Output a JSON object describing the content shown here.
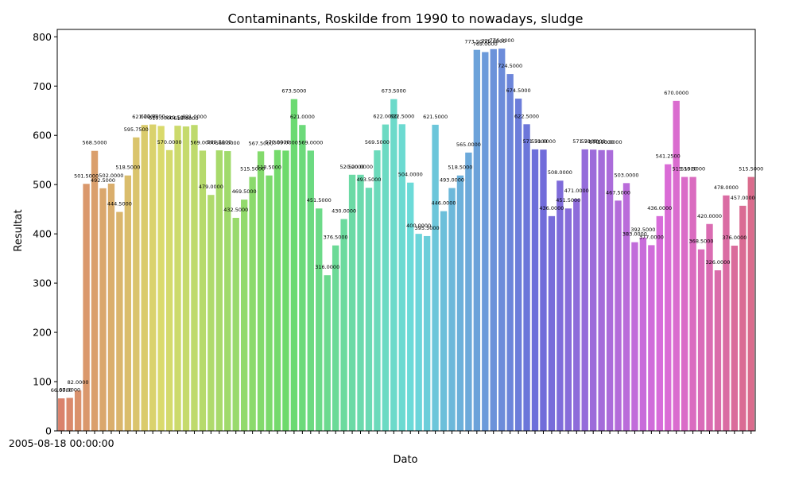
{
  "chart_data": {
    "type": "bar",
    "title": "Contaminants, Roskilde from 1990 to nowadays, sludge",
    "xlabel": "Dato",
    "ylabel": "Resultat",
    "ylim": [
      0,
      815
    ],
    "yticks": [
      0,
      100,
      200,
      300,
      400,
      500,
      600,
      700,
      800
    ],
    "grid": false,
    "legend": "none",
    "x_tick_text": "2005-08-18 00:00:00",
    "values": [
      66.0,
      67.0,
      82.0,
      501.5,
      568.5,
      492.5,
      502.0,
      444.5,
      518.5,
      595.75,
      621.0,
      622.0,
      619.0,
      570.0,
      619.5,
      618.0,
      621.0,
      569.0,
      479.0,
      569.5,
      568.0,
      432.5,
      469.5,
      515.5,
      567.5,
      518.5,
      570.0,
      569.0,
      673.5,
      621.0,
      569.0,
      451.5,
      316.0,
      376.5,
      430.0,
      520.0,
      520.0,
      493.5,
      569.5,
      622.0,
      673.5,
      622.5,
      504.0,
      400.0,
      395.5,
      621.5,
      446.0,
      493.0,
      518.5,
      565.0,
      773.5,
      769.0,
      775.0,
      776.0,
      724.5,
      674.5,
      622.5,
      571.5,
      571.0,
      436.0,
      508.0,
      451.5,
      471.0,
      571.5,
      571.0,
      570.0,
      570.0,
      467.5,
      503.0,
      383.0,
      392.5,
      377.0,
      436.0,
      541.25,
      670.0,
      515.5,
      515.5,
      368.5,
      420.0,
      326.0,
      478.0,
      376.0,
      457.0,
      515.5
    ],
    "labels": [
      "66.0000",
      "67.0000",
      "82.0000",
      "501.5000",
      "568.5000",
      "492.5000",
      "502.0000",
      "444.5000",
      "518.5000",
      "595.7500",
      "621.0000",
      "622.0000",
      "619.0000",
      "570.0000",
      "619.5000",
      "618.0000",
      "621.0000",
      "569.0000",
      "479.0000",
      "569.5000",
      "568.0000",
      "432.5000",
      "469.5000",
      "515.5000",
      "567.5000",
      "518.5000",
      "570.0000",
      "569.0000",
      "673.5000",
      "621.0000",
      "569.0000",
      "451.5000",
      "316.0000",
      "376.5000",
      "430.0000",
      "520.0000",
      "520.0000",
      "493.5000",
      "569.5000",
      "622.0000",
      "673.5000",
      "622.5000",
      "504.0000",
      "400.0000",
      "395.5000",
      "621.5000",
      "446.0000",
      "493.0000",
      "518.5000",
      "565.0000",
      "773.5000",
      "769.0000",
      "775.0000",
      "776.0000",
      "724.5000",
      "674.5000",
      "622.5000",
      "571.5000",
      "571.0000",
      "436.0000",
      "508.0000",
      "451.5000",
      "471.0000",
      "571.5000",
      "571.0000",
      "570.0000",
      "570.0000",
      "467.5000",
      "503.0000",
      "383.0000",
      "392.5000",
      "377.0000",
      "436.0000",
      "541.2500",
      "670.0000",
      "515.5000",
      "515.5000",
      "368.5000",
      "420.0000",
      "326.0000",
      "478.0000",
      "376.0000",
      "457.0000",
      "515.5000"
    ],
    "palette": "husl"
  }
}
